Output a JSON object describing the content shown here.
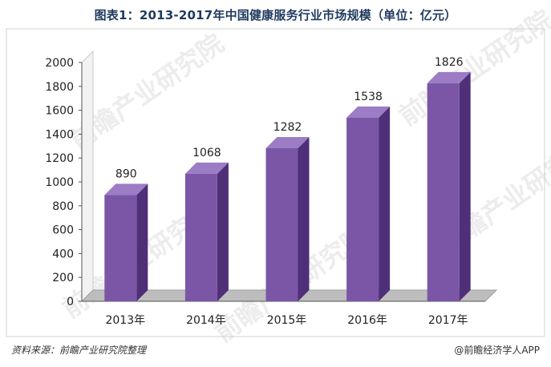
{
  "title": "图表1：2013-2017年中国健康服务行业市场规模（单位：亿元）",
  "footer": {
    "source": "资料来源：前瞻产业研究院整理",
    "credit": "@前瞻经济学人APP"
  },
  "watermark": "前瞻产业研究院",
  "colors": {
    "bar_front": "#7b55a6",
    "bar_side": "#4e2f78",
    "bar_top": "#9b7cc5",
    "floor": "#bdbdbd",
    "title": "#1f3a5f"
  },
  "chart_data": {
    "type": "bar",
    "categories": [
      "2013年",
      "2014年",
      "2015年",
      "2016年",
      "2017年"
    ],
    "values": [
      890,
      1068,
      1282,
      1538,
      1826
    ],
    "data_labels": [
      "890",
      "1068",
      "1282",
      "1538",
      "1826"
    ],
    "ylim": [
      0,
      2000
    ],
    "yticks": [
      0,
      200,
      400,
      600,
      800,
      1000,
      1200,
      1400,
      1600,
      1800,
      2000
    ],
    "grid": false,
    "xlabel": "",
    "ylabel": ""
  }
}
